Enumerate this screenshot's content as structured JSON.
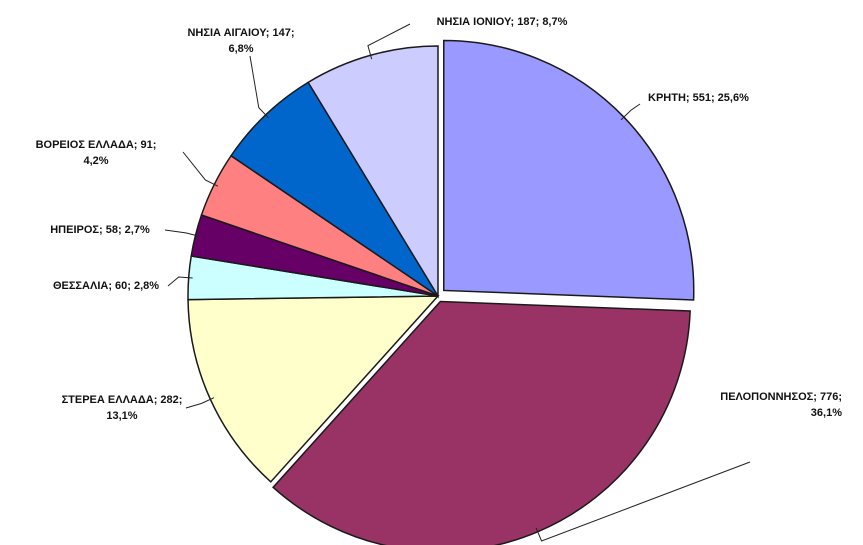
{
  "chart_data": {
    "type": "pie",
    "slices": [
      {
        "label": "ΚΡΗΤΗ",
        "value": 551,
        "percent": "25,6%",
        "color": "#9999ff"
      },
      {
        "label": "ΠΕΛΟΠΟΝΝΗΣΟΣ",
        "value": 776,
        "percent": "36,1%",
        "color": "#993366"
      },
      {
        "label": "ΣΤΕΡΕΑ ΕΛΛΑΔΑ",
        "value": 282,
        "percent": "13,1%",
        "color": "#ffffcc"
      },
      {
        "label": "ΘΕΣΣΑΛΙΑ",
        "value": 60,
        "percent": "2,8%",
        "color": "#ccffff"
      },
      {
        "label": "ΗΠΕΙΡΟΣ",
        "value": 58,
        "percent": "2,7%",
        "color": "#660066"
      },
      {
        "label": "ΒΟΡΕΙΟΣ ΕΛΛΑΔΑ",
        "value": 91,
        "percent": "4,2%",
        "color": "#ff8080"
      },
      {
        "label": "ΝΗΣΙΑ ΑΙΓΑΙΟΥ",
        "value": 147,
        "percent": "6,8%",
        "color": "#0066cc"
      },
      {
        "label": "ΝΗΣΙΑ ΙΟΝΙΟΥ",
        "value": 187,
        "percent": "8,7%",
        "color": "#ccccff"
      }
    ],
    "label_lines": [
      [
        "ΚΡΗΤΗ; 551; 25,6%"
      ],
      [
        "ΠΕΛΟΠΟΝΝΗΣΟΣ; 776;",
        "36,1%"
      ],
      [
        "ΣΤΕΡΕΑ ΕΛΛΑΔΑ; 282;",
        "13,1%"
      ],
      [
        "ΘΕΣΣΑΛΙΑ; 60; 2,8%"
      ],
      [
        "ΗΠΕΙΡΟΣ; 58; 2,7%"
      ],
      [
        "ΒΟΡΕΙΟΣ ΕΛΛΑΔΑ; 91;",
        "4,2%"
      ],
      [
        "ΝΗΣΙΑ ΑΙΓΑΙΟΥ; 147;",
        "6,8%"
      ],
      [
        "ΝΗΣΙΑ ΙΟΝΙΟΥ; 187; 8,7%"
      ]
    ]
  }
}
